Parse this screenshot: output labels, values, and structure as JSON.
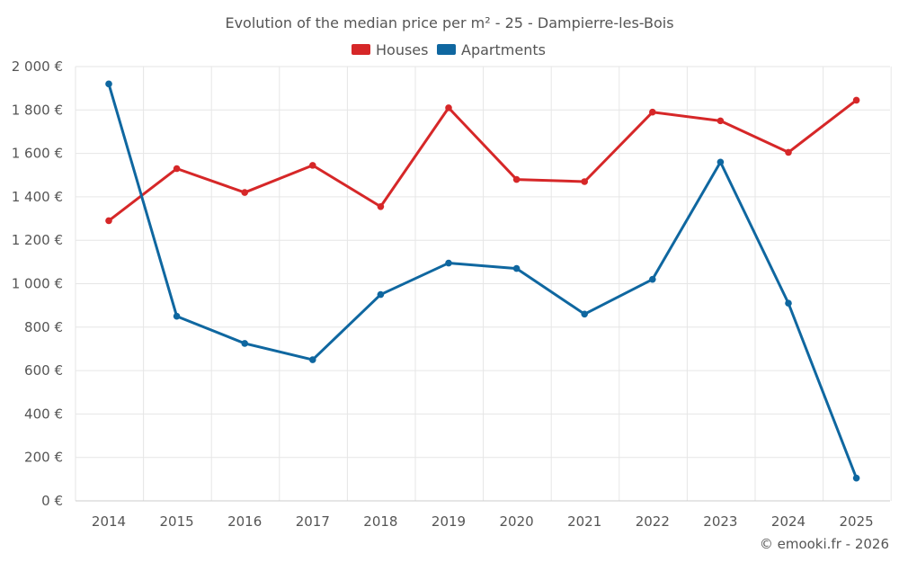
{
  "chart_data": {
    "type": "line",
    "title": "Evolution of the median price per m² - 25 - Dampierre-les-Bois",
    "categories": [
      "2014",
      "2015",
      "2016",
      "2017",
      "2018",
      "2019",
      "2020",
      "2021",
      "2022",
      "2023",
      "2024",
      "2025"
    ],
    "series": [
      {
        "name": "Houses",
        "color": "#d62728",
        "values": [
          1290,
          1530,
          1420,
          1545,
          1355,
          1810,
          1480,
          1470,
          1790,
          1750,
          1605,
          1845
        ]
      },
      {
        "name": "Apartments",
        "color": "#0f67a0",
        "values": [
          1920,
          850,
          725,
          650,
          950,
          1095,
          1070,
          860,
          1020,
          1560,
          910,
          105
        ]
      }
    ],
    "ylim": [
      0,
      2000
    ],
    "yticks": [
      0,
      200,
      400,
      600,
      800,
      1000,
      1200,
      1400,
      1600,
      1800,
      2000
    ],
    "ytick_labels": [
      "0 €",
      "200 €",
      "400 €",
      "600 €",
      "800 €",
      "1 000 €",
      "1 200 €",
      "1 400 €",
      "1 600 €",
      "1 800 €",
      "2 000 €"
    ],
    "xlabel": "",
    "ylabel": "",
    "grid": true,
    "legend_position": "top-center"
  },
  "credit": "© emooki.fr - 2026"
}
